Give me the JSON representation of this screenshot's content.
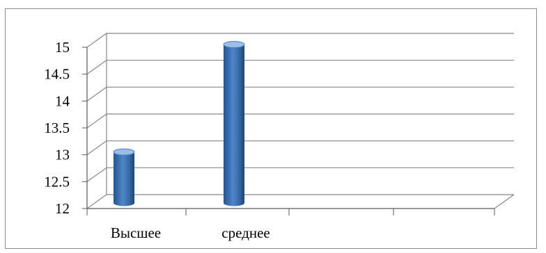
{
  "chart_data": {
    "type": "bar",
    "style": "3d-cylinder",
    "categories": [
      "Высшее",
      "среднее",
      "",
      ""
    ],
    "values": [
      13,
      15,
      null,
      null
    ],
    "ylim": [
      12,
      15
    ],
    "yticks": [
      "15",
      "14.5",
      "14",
      "13.5",
      "13",
      "12.5",
      "12"
    ],
    "ytick_values": [
      15,
      14.5,
      14,
      13.5,
      13,
      12.5,
      12
    ],
    "grid": true,
    "legend": "none",
    "colors": {
      "bar": "#4a7ebb",
      "bar_dark": "#1f4e8c",
      "bar_light": "#9cbde8",
      "grid": "#868686",
      "axis": "#595959"
    }
  }
}
